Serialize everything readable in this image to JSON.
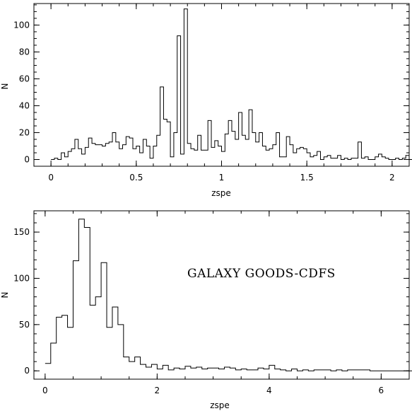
{
  "chart_data": [
    {
      "type": "histogram",
      "xlabel": "zspe",
      "ylabel": "N",
      "xlim": [
        -0.1,
        2.1
      ],
      "ylim": [
        -5,
        116
      ],
      "xticks": [
        0,
        0.5,
        1,
        1.5,
        2
      ],
      "xtick_labels": [
        "0",
        "0.5",
        "1",
        "1.5",
        "2"
      ],
      "yticks": [
        0,
        20,
        40,
        60,
        80,
        100
      ],
      "ytick_labels": [
        "0",
        "20",
        "40",
        "60",
        "80",
        "100"
      ],
      "bin_start": 0,
      "bin_width": 0.02,
      "values": [
        0,
        1,
        0,
        5,
        2,
        6,
        8,
        15,
        8,
        4,
        9,
        16,
        12,
        11,
        11,
        10,
        12,
        13,
        20,
        13,
        8,
        11,
        17,
        16,
        8,
        10,
        5,
        15,
        10,
        1,
        10,
        18,
        54,
        30,
        28,
        2,
        20,
        92,
        4,
        112,
        12,
        8,
        7,
        18,
        7,
        7,
        29,
        9,
        14,
        10,
        6,
        19,
        29,
        21,
        15,
        35,
        18,
        15,
        37,
        20,
        13,
        20,
        10,
        7,
        8,
        11,
        20,
        2,
        2,
        17,
        11,
        5,
        8,
        9,
        8,
        5,
        2,
        3,
        6,
        0,
        2,
        3,
        1,
        1,
        3,
        0,
        1,
        0,
        1,
        1,
        13,
        1,
        2,
        0,
        0,
        2,
        4,
        2,
        1,
        0,
        0,
        1,
        0,
        1,
        3,
        0,
        1,
        0,
        3,
        1,
        1,
        4,
        1,
        0,
        0,
        1,
        0,
        0,
        0,
        0
      ]
    },
    {
      "type": "histogram",
      "xlabel": "zspe",
      "ylabel": "N",
      "xlim": [
        -0.2,
        6.5
      ],
      "ylim": [
        -9,
        173
      ],
      "xticks": [
        0,
        2,
        4,
        6
      ],
      "xtick_labels": [
        "0",
        "2",
        "4",
        "6"
      ],
      "yticks": [
        0,
        50,
        100,
        150
      ],
      "ytick_labels": [
        "0",
        "50",
        "100",
        "150"
      ],
      "annotation": "GALAXY GOODS-CDFS",
      "bin_start": 0,
      "bin_width": 0.1,
      "values": [
        8,
        30,
        58,
        60,
        47,
        119,
        164,
        155,
        71,
        80,
        117,
        47,
        69,
        50,
        15,
        10,
        15,
        7,
        4,
        7,
        2,
        6,
        1,
        3,
        2,
        5,
        3,
        4,
        2,
        3,
        3,
        2,
        4,
        3,
        1,
        2,
        1,
        1,
        3,
        2,
        6,
        2,
        1,
        0,
        2,
        0,
        1,
        0,
        1,
        1,
        1,
        0,
        1,
        0,
        1,
        1,
        1,
        1,
        0,
        0,
        0,
        0,
        0,
        0,
        0,
        0,
        0,
        0,
        0,
        1,
        1,
        1,
        1,
        0,
        0,
        0,
        0
      ]
    }
  ]
}
